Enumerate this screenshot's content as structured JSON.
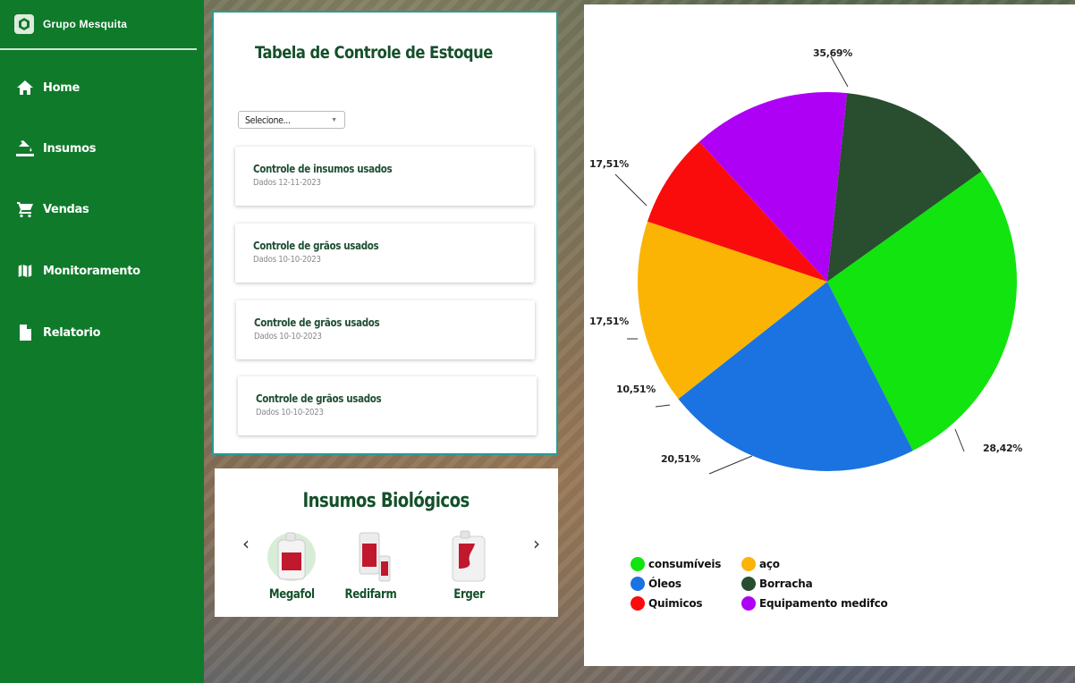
{
  "app": {
    "brand": "Grupo Mesquita"
  },
  "sidebar": {
    "items": [
      {
        "label": "Home",
        "icon": "home-icon"
      },
      {
        "label": "Insumos",
        "icon": "paint-bucket-icon"
      },
      {
        "label": "Vendas",
        "icon": "cart-icon"
      },
      {
        "label": "Monitoramento",
        "icon": "map-icon"
      },
      {
        "label": "Relatorio",
        "icon": "file-icon"
      }
    ]
  },
  "estoque": {
    "title": "Tabela de Controle de Estoque",
    "select_value": "Selecione...",
    "reports": [
      {
        "title": "Controle de insumos usados",
        "date": "Dados 12-11-2023"
      },
      {
        "title": "Controle de grãos usados",
        "date": "Dados 10-10-2023"
      },
      {
        "title": "Controle de grãos usados",
        "date": "Dados 10-10-2023"
      },
      {
        "title": "Controle de grãos usados",
        "date": "Dados 10-10-2023"
      }
    ]
  },
  "insumos": {
    "title": "Insumos Biológicos",
    "prev": "‹",
    "next": "›",
    "products": [
      {
        "name": "Megafol"
      },
      {
        "name": "Redifarm"
      },
      {
        "name": "Erger"
      }
    ]
  },
  "chart_data": {
    "type": "pie",
    "slices": [
      {
        "name": "consumíveis",
        "label": "35,69%",
        "value": 35.69,
        "color": "#11e40f"
      },
      {
        "name": "Óleos",
        "label": "28,42%",
        "value": 28.42,
        "color": "#1a73e0"
      },
      {
        "name": "aço",
        "label": "20,51%",
        "value": 20.51,
        "color": "#fbb404"
      },
      {
        "name": "Quimicos",
        "label": "10,51%",
        "value": 10.51,
        "color": "#fb0c0c"
      },
      {
        "name": "Equipamento medifco",
        "label": "17,51%",
        "value": 17.51,
        "color": "#ae00f5"
      },
      {
        "name": "Borracha",
        "label": "17,51%",
        "value": 17.51,
        "color": "#294d2f"
      }
    ],
    "legend": [
      {
        "name": "consumíveis",
        "color": "#11e40f"
      },
      {
        "name": "aço",
        "color": "#fbb404"
      },
      {
        "name": "Óleos",
        "color": "#1a73e0"
      },
      {
        "name": "Borracha",
        "color": "#294d2f"
      },
      {
        "name": "Quimicos",
        "color": "#fb0c0c"
      },
      {
        "name": "Equipamento medifco",
        "color": "#ae00f5"
      }
    ],
    "legend_position": "bottom-left"
  }
}
